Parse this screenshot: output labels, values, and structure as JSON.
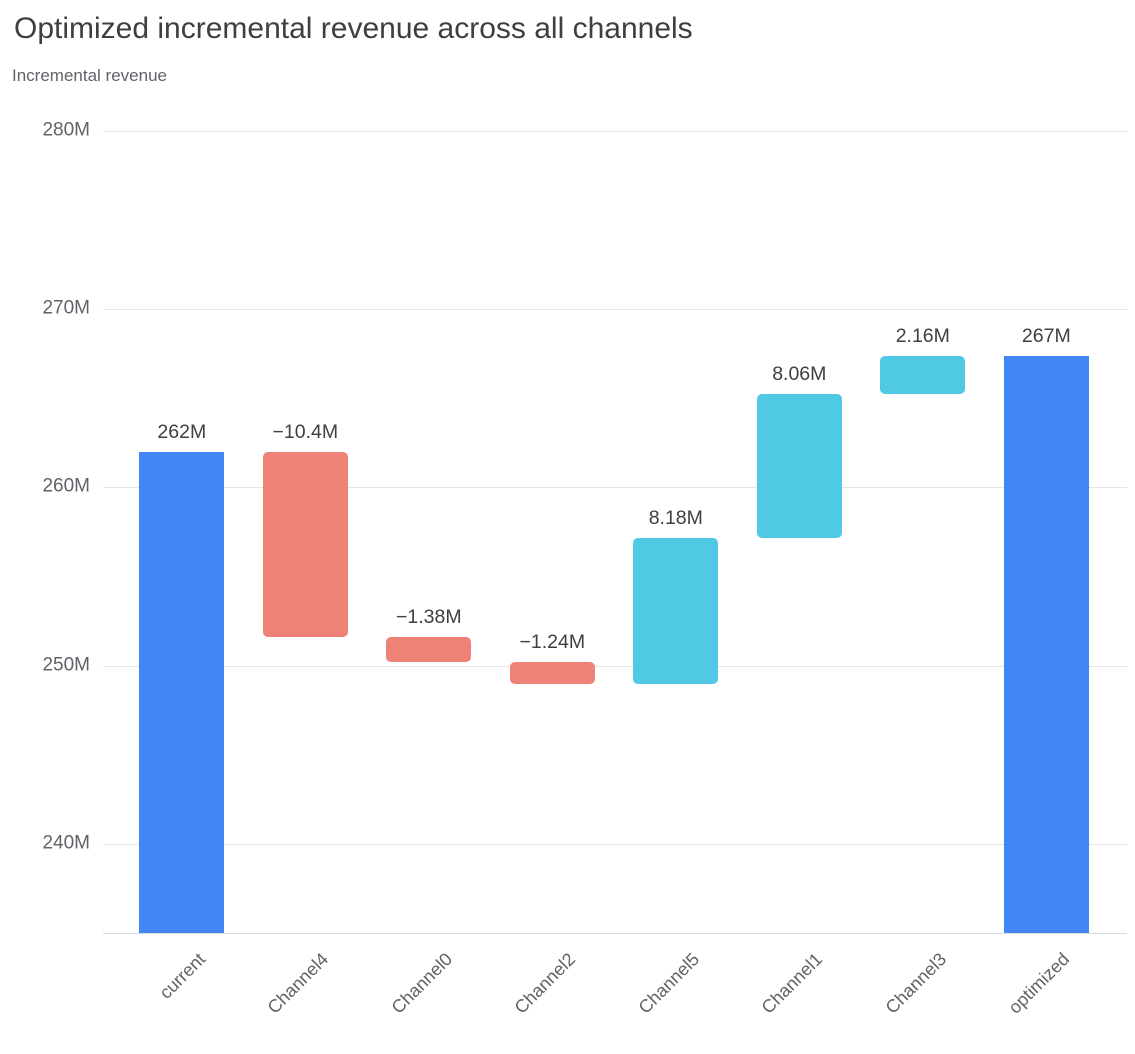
{
  "header": {
    "title": "Optimized incremental revenue across all channels",
    "subtitle": "Incremental revenue"
  },
  "chart_data": {
    "type": "bar",
    "subtype": "waterfall",
    "title": "Optimized incremental revenue across all channels",
    "ylabel": "Incremental revenue",
    "xlabel": "",
    "ylim": [
      235,
      280
    ],
    "grid": "horizontal",
    "legend": "none",
    "colors": {
      "total": "#4285f4",
      "negative": "#ee8276",
      "positive": "#4fc9e4"
    },
    "yticks": [
      {
        "value": 280,
        "label": "280M"
      },
      {
        "value": 270,
        "label": "270M"
      },
      {
        "value": 260,
        "label": "260M"
      },
      {
        "value": 250,
        "label": "250M"
      },
      {
        "value": 240,
        "label": "240M"
      }
    ],
    "categories": [
      "current",
      "Channel4",
      "Channel0",
      "Channel2",
      "Channel5",
      "Channel1",
      "Channel3",
      "optimized"
    ],
    "bars": [
      {
        "category": "current",
        "role": "total",
        "value": 262,
        "display": "262M",
        "start": 0,
        "end": 262
      },
      {
        "category": "Channel4",
        "role": "negative",
        "value": -10.4,
        "display": "−10.4M",
        "start": 262,
        "end": 251.6
      },
      {
        "category": "Channel0",
        "role": "negative",
        "value": -1.38,
        "display": "−1.38M",
        "start": 251.6,
        "end": 250.22
      },
      {
        "category": "Channel2",
        "role": "negative",
        "value": -1.24,
        "display": "−1.24M",
        "start": 250.22,
        "end": 248.98
      },
      {
        "category": "Channel5",
        "role": "positive",
        "value": 8.18,
        "display": "8.18M",
        "start": 248.98,
        "end": 257.16
      },
      {
        "category": "Channel1",
        "role": "positive",
        "value": 8.06,
        "display": "8.06M",
        "start": 257.16,
        "end": 265.22
      },
      {
        "category": "Channel3",
        "role": "positive",
        "value": 2.16,
        "display": "2.16M",
        "start": 265.22,
        "end": 267.38
      },
      {
        "category": "optimized",
        "role": "total",
        "value": 267.38,
        "display": "267M",
        "start": 0,
        "end": 267.38
      }
    ]
  }
}
